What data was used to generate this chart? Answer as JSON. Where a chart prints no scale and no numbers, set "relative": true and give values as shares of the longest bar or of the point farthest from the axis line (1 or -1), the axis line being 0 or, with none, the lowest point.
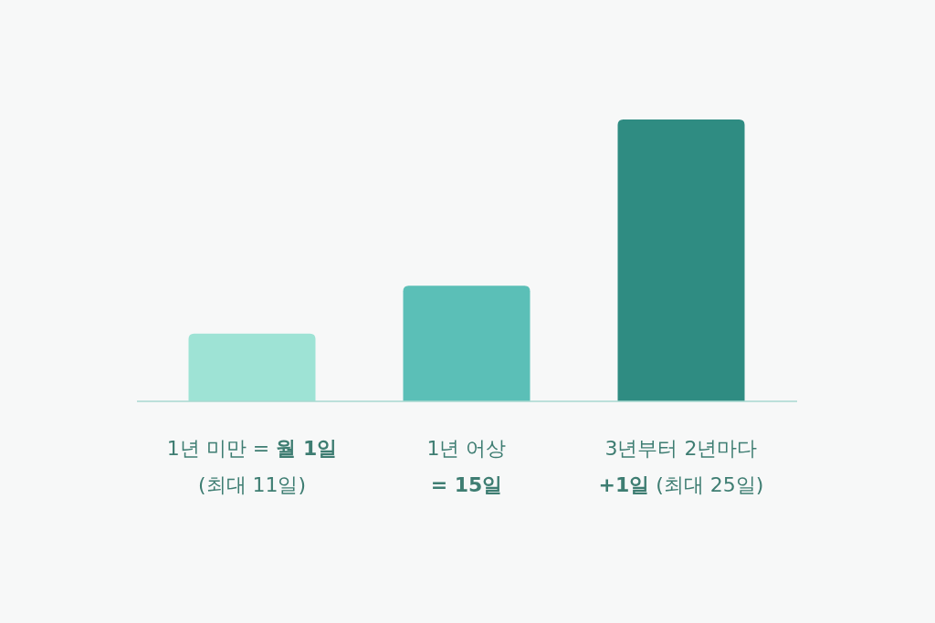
{
  "chart_data": {
    "type": "bar",
    "relative": true,
    "categories": [
      "1년 미만 = **월 1일**\n(최대 11일)",
      "1년 어상\n**= 15일**",
      "3년부터 2년마다\n**+1일** (최대 25일)"
    ],
    "values": [
      0.24,
      0.41,
      1
    ],
    "colors": [
      "#9ee3d5",
      "#5bbfb7",
      "#2f8c82"
    ]
  }
}
